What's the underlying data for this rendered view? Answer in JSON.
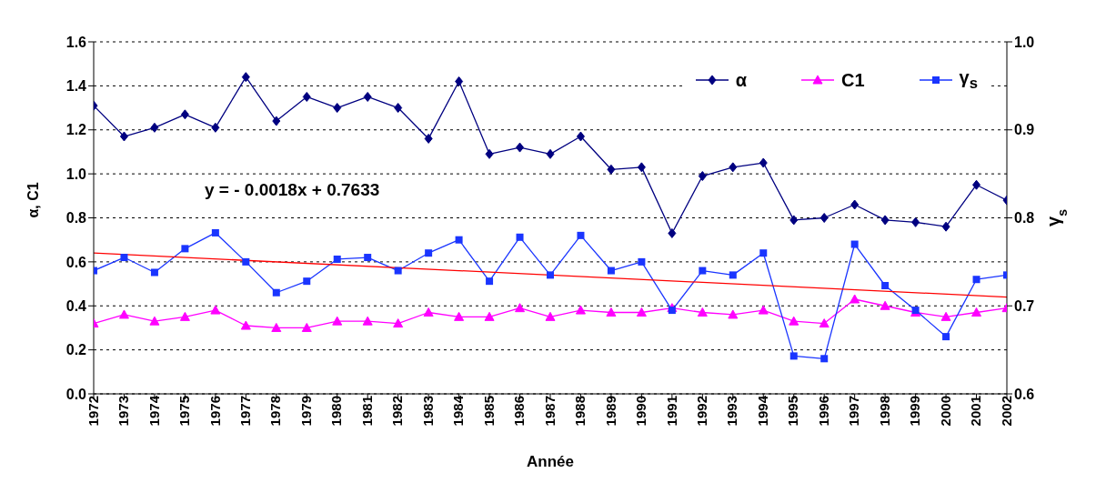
{
  "chart_data": {
    "type": "line",
    "categories": [
      "1972",
      "1973",
      "1974",
      "1975",
      "1976",
      "1977",
      "1978",
      "1979",
      "1980",
      "1981",
      "1982",
      "1983",
      "1984",
      "1985",
      "1986",
      "1987",
      "1988",
      "1989",
      "1990",
      "1991",
      "1992",
      "1993",
      "1994",
      "1995",
      "1996",
      "1997",
      "1998",
      "1999",
      "2000",
      "2001",
      "2002"
    ],
    "series": [
      {
        "name": "α",
        "color": "#000080",
        "marker": "diamond",
        "values": [
          1.31,
          1.17,
          1.21,
          1.27,
          1.21,
          1.44,
          1.24,
          1.35,
          1.3,
          1.35,
          1.3,
          1.16,
          1.42,
          1.09,
          1.12,
          1.09,
          1.17,
          1.02,
          1.03,
          0.73,
          0.99,
          1.03,
          1.05,
          0.79,
          0.8,
          0.86,
          0.79,
          0.78,
          0.76,
          0.95,
          0.88
        ]
      },
      {
        "name": "C1",
        "color": "#ff00ff",
        "marker": "triangle",
        "values": [
          0.32,
          0.36,
          0.33,
          0.35,
          0.38,
          0.31,
          0.3,
          0.3,
          0.33,
          0.33,
          0.32,
          0.37,
          0.35,
          0.35,
          0.39,
          0.35,
          0.38,
          0.37,
          0.37,
          0.39,
          0.37,
          0.36,
          0.38,
          0.33,
          0.32,
          0.43,
          0.4,
          0.37,
          0.35,
          0.37,
          0.39
        ]
      },
      {
        "name": "γ$_{s}$",
        "color": "#1a35ff",
        "marker": "square",
        "axis": "y2",
        "values": [
          0.74,
          0.755,
          0.738,
          0.765,
          0.783,
          0.75,
          0.715,
          0.728,
          0.753,
          0.755,
          0.74,
          0.76,
          0.775,
          0.728,
          0.778,
          0.735,
          0.78,
          0.74,
          0.75,
          0.695,
          0.74,
          0.735,
          0.76,
          0.643,
          0.64,
          0.77,
          0.723,
          0.695,
          0.665,
          0.73,
          0.735
        ]
      },
      {
        "type": "line",
        "color": "#ff0000",
        "marker": "none",
        "axis": "y2",
        "values": [
          0.76,
          null,
          null,
          null,
          null,
          null,
          null,
          null,
          null,
          null,
          null,
          null,
          null,
          null,
          null,
          null,
          null,
          null,
          null,
          null,
          null,
          null,
          null,
          null,
          null,
          null,
          null,
          null,
          null,
          null,
          0.71
        ]
      }
    ],
    "xlabel": "Année",
    "ylabel": "α, C1",
    "y2label": "γ$_{s}$",
    "ylim": [
      0,
      1.6
    ],
    "yticks": [
      {
        "value": 0,
        "label": "0.0"
      },
      {
        "value": 0.2,
        "label": "0.2"
      },
      {
        "value": 0.4,
        "label": "0.4"
      },
      {
        "value": 0.6,
        "label": "0.6"
      },
      {
        "value": 0.8,
        "label": "0.8"
      },
      {
        "value": 1,
        "label": "1.0"
      },
      {
        "value": 1.2,
        "label": "1.2"
      },
      {
        "value": 1.4,
        "label": "1.4"
      },
      {
        "value": 1.6,
        "label": "1.6"
      }
    ],
    "y2lim": [
      0.6,
      1.0
    ],
    "y2ticks": [
      0.6,
      0.7,
      0.8,
      0.9,
      {
        "value": 1,
        "label": "1.0"
      }
    ],
    "grid": "y",
    "legend": "top right",
    "line_style": "solid",
    "annotations": [
      "y = - 0.0018x + 0.7633"
    ]
  }
}
